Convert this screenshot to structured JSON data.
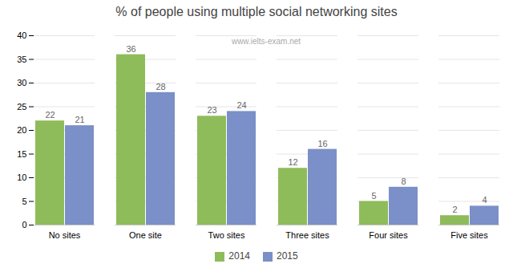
{
  "chart_data": {
    "type": "bar",
    "title": "% of people using multiple social networking sites",
    "annotations": [
      "www.ielts-exam.net"
    ],
    "categories": [
      "No sites",
      "One site",
      "Two sites",
      "Three sites",
      "Four sites",
      "Five sites"
    ],
    "series": [
      {
        "name": "2014",
        "color": "#8fbc5a",
        "values": [
          22,
          36,
          23,
          12,
          5,
          2
        ]
      },
      {
        "name": "2015",
        "color": "#7b8fc8",
        "values": [
          21,
          28,
          24,
          16,
          8,
          4
        ]
      }
    ],
    "ylim": [
      0,
      40
    ],
    "yticks": [
      0,
      5,
      10,
      15,
      20,
      25,
      30,
      35,
      40
    ],
    "grid": true,
    "data_labels": true,
    "legend": "bottom"
  }
}
